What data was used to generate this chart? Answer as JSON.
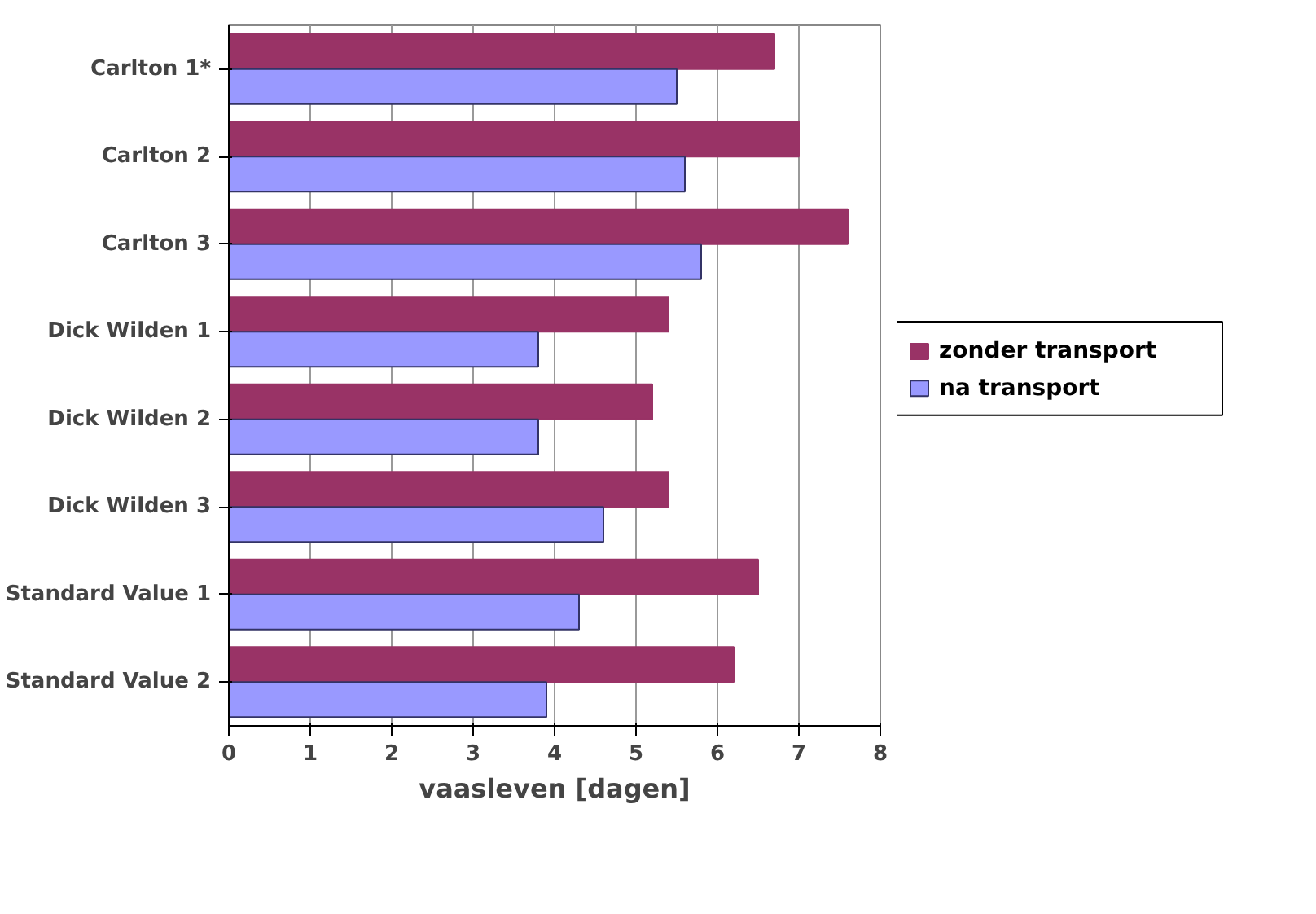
{
  "chart_data": {
    "type": "bar",
    "orientation": "horizontal",
    "xlabel": "vaasleven [dagen]",
    "categories": [
      "Carlton 1*",
      "Carlton 2",
      "Carlton 3",
      "Dick Wilden 1",
      "Dick Wilden 2",
      "Dick Wilden 3",
      "Standard Value 1",
      "Standard Value 2"
    ],
    "series": [
      {
        "name": "zonder transport",
        "color": "#993366",
        "values": [
          6.7,
          7.0,
          7.6,
          5.4,
          5.2,
          5.4,
          6.5,
          6.2
        ]
      },
      {
        "name": "na transport",
        "color": "#9999ff",
        "values": [
          5.5,
          5.6,
          5.8,
          3.8,
          3.8,
          4.6,
          4.3,
          3.9
        ]
      }
    ],
    "xlim": [
      0,
      8
    ],
    "xticks": [
      0,
      1,
      2,
      3,
      4,
      5,
      6,
      7,
      8
    ],
    "grid": "x",
    "legend": "right"
  }
}
